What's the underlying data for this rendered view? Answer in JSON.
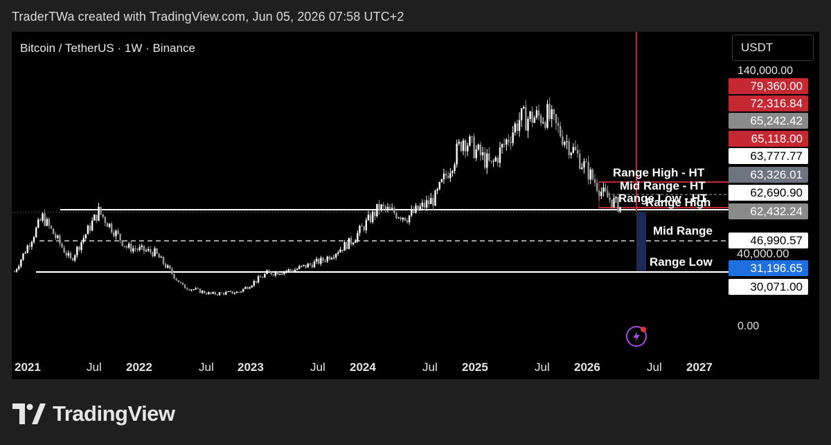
{
  "header": {
    "credit": "TraderTWa created with TradingView.com, Jun 05, 2026 07:58 UTC+2"
  },
  "chart": {
    "symbol": "Bitcoin / TetherUS · 1W · Binance",
    "currency": "USDT",
    "price_scale": {
      "top": "140,000.00",
      "mid_tick": "40,000.00",
      "bottom": "0.00",
      "tags": [
        {
          "value": "79,360.00",
          "style": "red"
        },
        {
          "value": "72,316.84",
          "style": "red"
        },
        {
          "value": "65,242.42",
          "style": "gray"
        },
        {
          "value": "65,118.00",
          "style": "red"
        },
        {
          "value": "63,777.77",
          "style": "white"
        },
        {
          "value": "63,326.01",
          "style": "slate"
        },
        {
          "value": "62,690.90",
          "style": "white"
        },
        {
          "value": "62,432.24",
          "style": "gray"
        },
        {
          "value": "46,990.57",
          "style": "white"
        },
        {
          "value": "31,196.65",
          "style": "blue"
        },
        {
          "value": "30,071.00",
          "style": "white"
        }
      ]
    },
    "time_axis": [
      {
        "label": "2021",
        "bold": true
      },
      {
        "label": "Jul",
        "bold": false
      },
      {
        "label": "2022",
        "bold": true
      },
      {
        "label": "Jul",
        "bold": false
      },
      {
        "label": "2023",
        "bold": true
      },
      {
        "label": "Jul",
        "bold": false
      },
      {
        "label": "2024",
        "bold": true
      },
      {
        "label": "Jul",
        "bold": false
      },
      {
        "label": "2025",
        "bold": true
      },
      {
        "label": "Jul",
        "bold": false
      },
      {
        "label": "2026",
        "bold": true
      },
      {
        "label": "Jul",
        "bold": false
      },
      {
        "label": "2027",
        "bold": true
      }
    ],
    "annotations": {
      "range_high_ht": "Range High - HT",
      "mid_range_ht": "Mid Range - HT",
      "range_low_ht": "Range Low - HT",
      "range_high": "Range High",
      "mid_range": "Mid Range",
      "range_low": "Range Low"
    },
    "colors": {
      "accent_red": "#c62832",
      "accent_blue": "#1e6fe0",
      "candle": "#ffffff"
    },
    "icons": {
      "alert": "lightning-alert-icon"
    }
  },
  "chart_data": {
    "type": "candlestick",
    "series": [
      {
        "name": "Bitcoin / TetherUS",
        "x": [
          "2021-01",
          "2021-04",
          "2021-07",
          "2021-10",
          "2022-01",
          "2022-04",
          "2022-07",
          "2022-10",
          "2023-01",
          "2023-04",
          "2023-07",
          "2023-10",
          "2024-01",
          "2024-04",
          "2024-07",
          "2024-10",
          "2025-01",
          "2025-04",
          "2025-07",
          "2025-10",
          "2026-01",
          "2026-04",
          "2026-06"
        ],
        "values": [
          29000,
          58000,
          35000,
          61000,
          42000,
          39000,
          21000,
          17000,
          18000,
          28000,
          30000,
          35000,
          45000,
          63000,
          58000,
          68000,
          100000,
          85000,
          110000,
          112000,
          92000,
          70000,
          62500
        ]
      }
    ],
    "ylim": [
      0,
      140000
    ],
    "levels": {
      "range_high": 62432.24,
      "mid_range": 46990.57,
      "range_low": 31196.65
    }
  }
}
